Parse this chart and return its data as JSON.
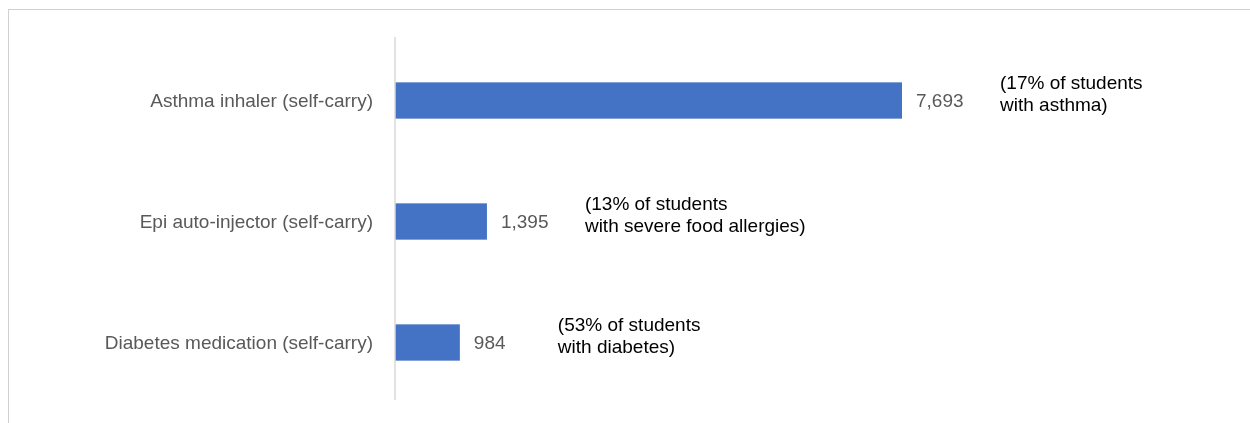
{
  "chart_data": {
    "type": "bar",
    "orientation": "horizontal",
    "categories": [
      "Asthma inhaler (self-carry)",
      "Epi auto-injector (self-carry)",
      "Diabetes medication (self-carry)"
    ],
    "values": [
      7693,
      1395,
      984
    ],
    "color": "#4472c4",
    "value_labels": [
      "7,693",
      "1,395",
      "984"
    ],
    "annotations": [
      "(17% of students\nwith asthma)",
      "(13% of students\nwith severe food allergies)",
      "(53% of students\nwith diabetes)"
    ]
  }
}
